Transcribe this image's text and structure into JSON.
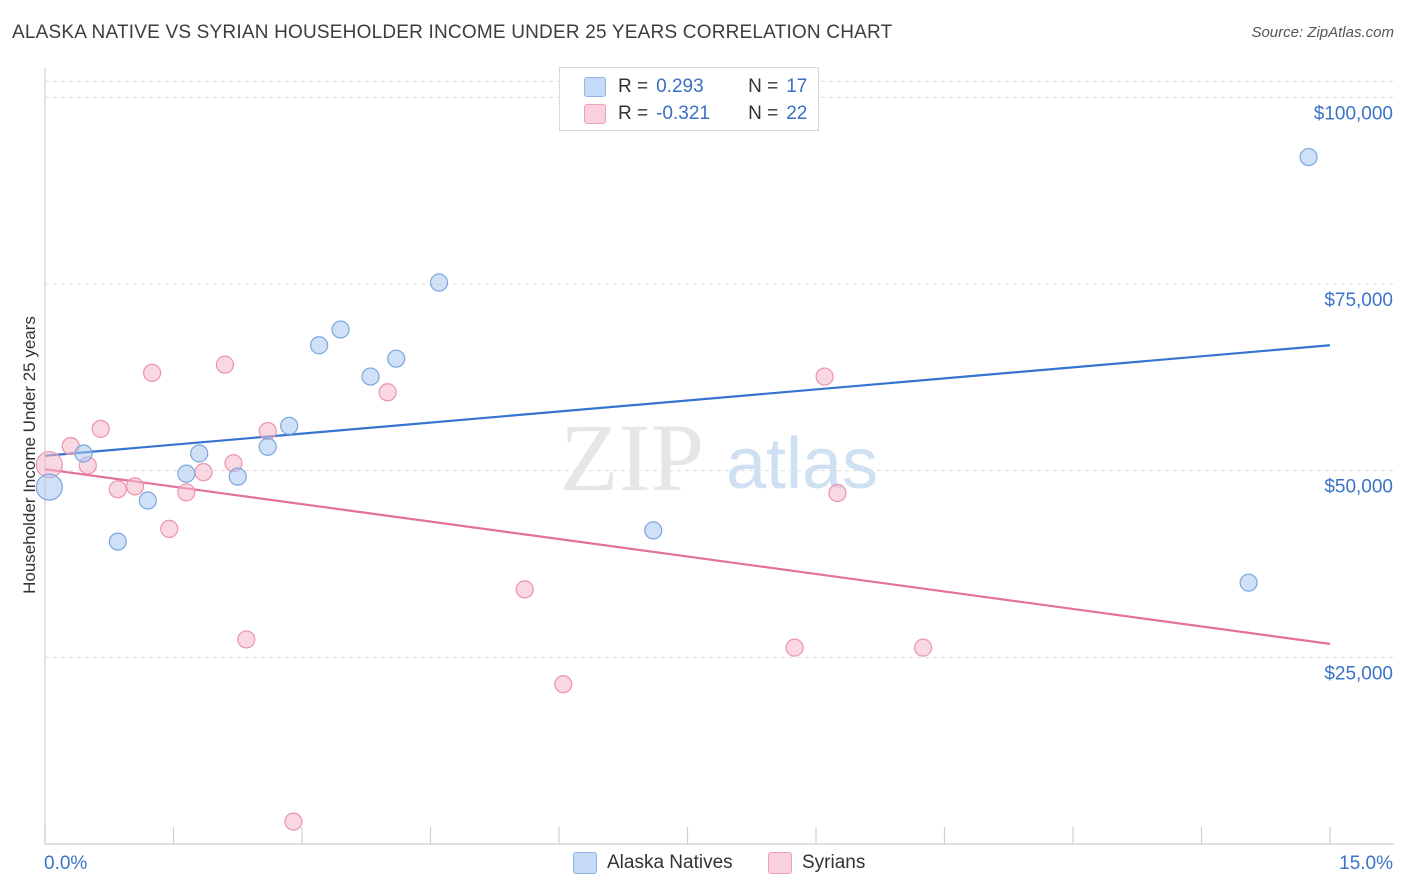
{
  "header": {
    "title": "ALASKA NATIVE VS SYRIAN HOUSEHOLDER INCOME UNDER 25 YEARS CORRELATION CHART",
    "source": "Source: ZipAtlas.com"
  },
  "watermark": {
    "zip": "ZIP",
    "atlas": "atlas"
  },
  "stats": [
    {
      "r_label": "R =",
      "r_value": "0.293",
      "n_label": "N =",
      "n_value": "17",
      "color": "#a9c8f0"
    },
    {
      "r_label": "R =",
      "r_value": "-0.321",
      "n_label": "N =",
      "n_value": "22",
      "color": "#f6b8cb"
    }
  ],
  "legend": [
    {
      "label": "Alaska Natives",
      "color": "#a9c8f0"
    },
    {
      "label": "Syrians",
      "color": "#f6b8cb"
    }
  ],
  "chart_data": {
    "type": "scatter",
    "ylabel": "Householder Income Under 25 years",
    "xlim": [
      0,
      15
    ],
    "ylim": [
      0,
      105000
    ],
    "x_tick_labels": [
      "0.0%",
      "15.0%"
    ],
    "y_ticks": [
      25000,
      50000,
      75000,
      100000
    ],
    "y_tick_labels": [
      "$25,000",
      "$50,000",
      "$75,000",
      "$100,000"
    ],
    "grid": true,
    "series": [
      {
        "name": "Alaska Natives",
        "color": "#a9c8f0",
        "stroke": "#7ba6de",
        "line_color": "#3574d0",
        "trend": [
          [
            0,
            52000
          ],
          [
            15,
            66800
          ]
        ],
        "points": [
          [
            0.05,
            47800
          ],
          [
            0.45,
            52300
          ],
          [
            0.85,
            40500
          ],
          [
            1.2,
            46000
          ],
          [
            1.65,
            49600
          ],
          [
            1.8,
            52300
          ],
          [
            2.25,
            49200
          ],
          [
            2.6,
            53200
          ],
          [
            2.85,
            56000
          ],
          [
            3.2,
            66800
          ],
          [
            3.45,
            68900
          ],
          [
            3.8,
            62600
          ],
          [
            4.1,
            65000
          ],
          [
            4.6,
            75200
          ],
          [
            7.1,
            42000
          ],
          [
            14.05,
            35000
          ],
          [
            14.75,
            92000
          ]
        ]
      },
      {
        "name": "Syrians",
        "color": "#f6b8cb",
        "stroke": "#ec93ad",
        "line_color": "#e2729a",
        "trend": [
          [
            0,
            50200
          ],
          [
            15,
            26800
          ]
        ],
        "points": [
          [
            0.05,
            50800
          ],
          [
            0.3,
            53300
          ],
          [
            0.5,
            50700
          ],
          [
            0.65,
            55600
          ],
          [
            0.85,
            47500
          ],
          [
            1.05,
            47900
          ],
          [
            1.25,
            63100
          ],
          [
            1.45,
            42200
          ],
          [
            1.65,
            47100
          ],
          [
            1.85,
            49800
          ],
          [
            2.1,
            64200
          ],
          [
            2.2,
            51000
          ],
          [
            2.35,
            27400
          ],
          [
            2.6,
            55300
          ],
          [
            2.9,
            3000
          ],
          [
            4.0,
            60500
          ],
          [
            5.6,
            34100
          ],
          [
            6.05,
            21400
          ],
          [
            8.75,
            26300
          ],
          [
            9.1,
            62600
          ],
          [
            9.25,
            47000
          ],
          [
            10.25,
            26300
          ]
        ]
      }
    ]
  }
}
